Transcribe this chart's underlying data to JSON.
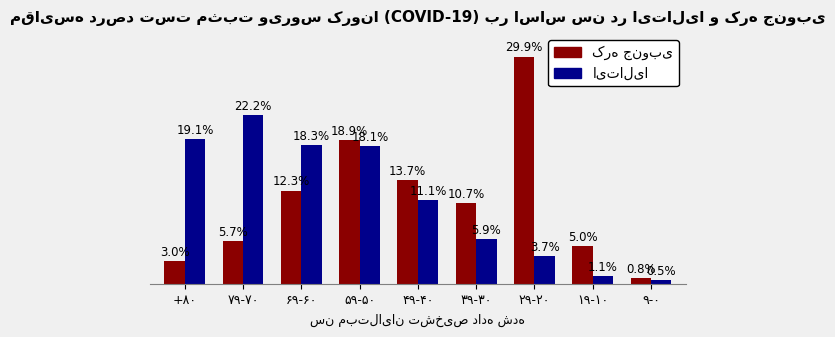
{
  "title": "مقایسه درصد تست مثبت ویروس کرونا (COVID-19) بر اساس سن در ایتالیا و کره جنوبی",
  "xlabel": "سن مبتلایان تشخیص داده شده",
  "categories": [
    "+۸۰",
    "۷۹-۷۰",
    "۶۹-۶۰",
    "۵۹-۵۰",
    "۴۹-۴۰",
    "۳۹-۳۰",
    "۲۹-۲۰",
    "۱۹-۱۰",
    "۹-۰"
  ],
  "south_korea": [
    3.0,
    5.7,
    12.3,
    18.9,
    13.7,
    10.7,
    29.9,
    5.0,
    0.8
  ],
  "italy": [
    19.1,
    22.2,
    18.3,
    18.1,
    11.1,
    5.9,
    3.7,
    1.1,
    0.5
  ],
  "korea_color": "#8B0000",
  "italy_color": "#00008B",
  "legend_korea": "کره جنوبی",
  "legend_italy": "ایتالیا",
  "background_color": "#f0f0f0",
  "bar_width": 0.35,
  "ylim": [
    0,
    33
  ],
  "title_fontsize": 11,
  "label_fontsize": 8.5,
  "tick_fontsize": 9,
  "legend_fontsize": 10
}
